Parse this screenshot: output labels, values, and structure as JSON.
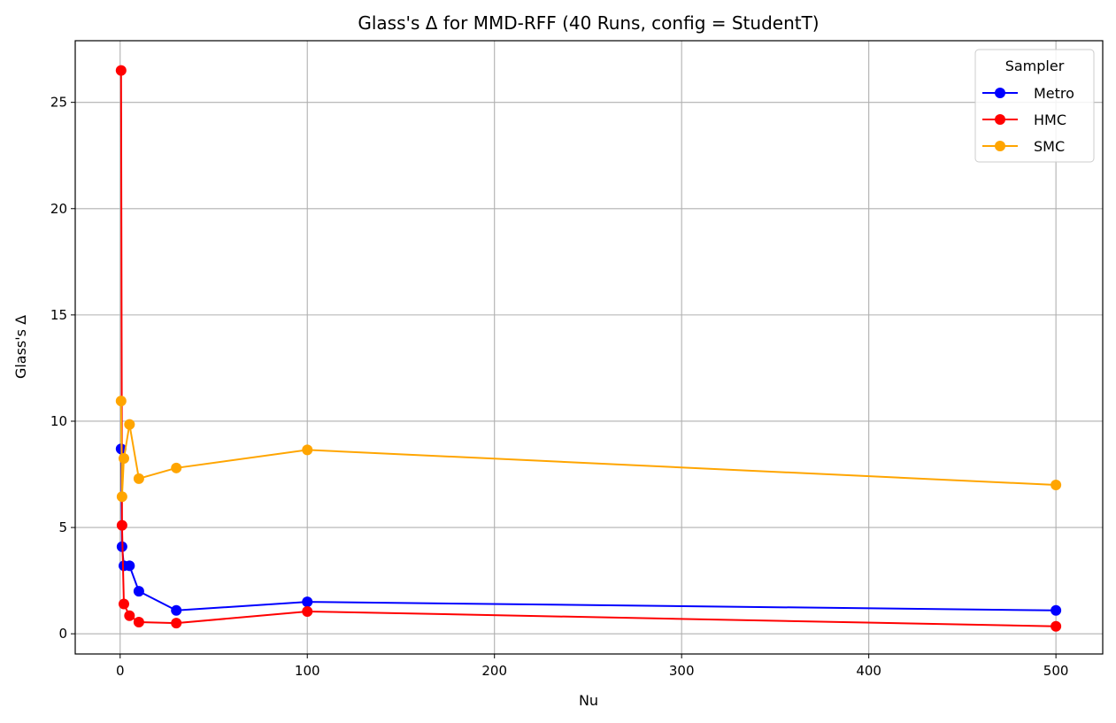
{
  "chart_data": {
    "type": "line",
    "title": "Glass's Δ for MMD-RFF (40 Runs, config = StudentT)",
    "xlabel": "Nu",
    "ylabel": "Glass's Δ",
    "xlim": [
      -24,
      525
    ],
    "ylim": [
      -0.95,
      27.9
    ],
    "xticks": [
      0,
      100,
      200,
      300,
      400,
      500
    ],
    "yticks": [
      0,
      5,
      10,
      15,
      20,
      25
    ],
    "grid": true,
    "legend": {
      "title": "Sampler",
      "placement": "top-right"
    },
    "series": [
      {
        "name": "Metro",
        "color": "#0000ff",
        "x": [
          0.5,
          1,
          2,
          5,
          10,
          30,
          100,
          500
        ],
        "y": [
          8.7,
          4.1,
          3.2,
          3.2,
          2.0,
          1.1,
          1.5,
          1.1
        ]
      },
      {
        "name": "HMC",
        "color": "#ff0000",
        "x": [
          0.5,
          1,
          2,
          5,
          10,
          30,
          100,
          500
        ],
        "y": [
          26.5,
          5.1,
          1.4,
          0.85,
          0.55,
          0.5,
          1.05,
          0.35
        ]
      },
      {
        "name": "SMC",
        "color": "#ffa500",
        "x": [
          0.5,
          1,
          2,
          5,
          10,
          30,
          100,
          500
        ],
        "y": [
          10.95,
          6.45,
          8.25,
          9.85,
          7.3,
          7.8,
          8.65,
          7.0
        ]
      }
    ]
  }
}
